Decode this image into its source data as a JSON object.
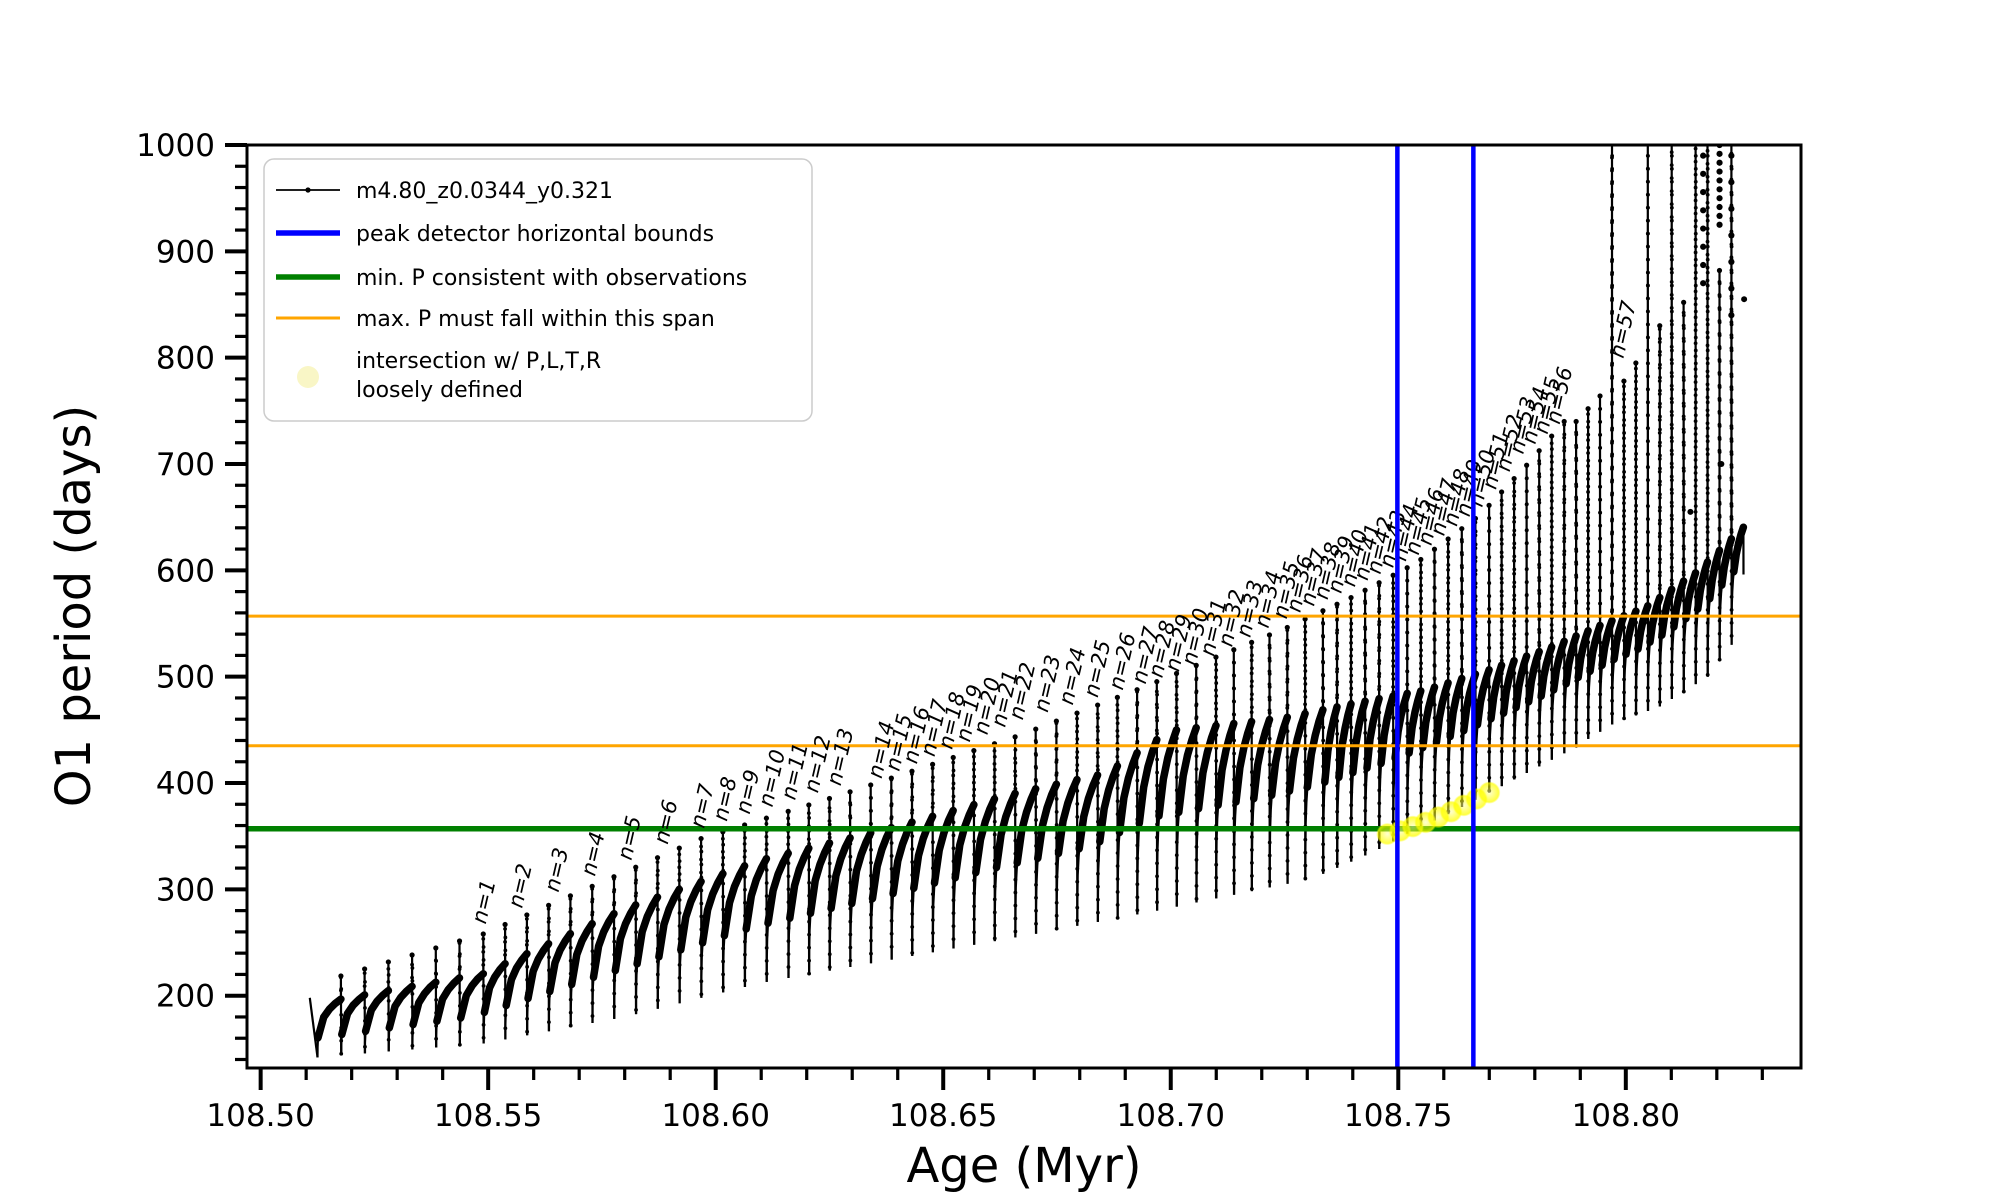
{
  "figure": {
    "background": "#ffffff"
  },
  "chart_data": {
    "type": "line",
    "title": "",
    "xlabel": "Age (Myr)",
    "ylabel": "O1 period (days)",
    "xlim": [
      108.497,
      108.8385
    ],
    "ylim": [
      132,
      1000
    ],
    "xticks": [
      108.5,
      108.55,
      108.6,
      108.65,
      108.7,
      108.75,
      108.8
    ],
    "x_minor_step": 0.01,
    "yticks": [
      200,
      300,
      400,
      500,
      600,
      700,
      800,
      900,
      1000
    ],
    "y_minor_step": 20,
    "grid": "off",
    "legend_position": "upper-left",
    "series": [
      {
        "label": "m4.80_z0.0344_y0.321",
        "color": "#000000",
        "style": "sawtooth line with dot markers"
      }
    ],
    "series_shape": {
      "comment_visible_structure": "sawtooth pulsation-period track: each tooth rises along an arc, overshoots with a thin dotted spike, then drops to the next minimum; spikes near the right edge exceed the top axis",
      "lead_in": {
        "x": 108.5108,
        "y": 198
      },
      "tooth_count": 81,
      "tooth_index_anchors": [
        [
          0,
          108.5125
        ],
        [
          7,
          108.549
        ],
        [
          21,
          108.616
        ],
        [
          36,
          108.684
        ],
        [
          42,
          108.71
        ],
        [
          48,
          108.7335
        ],
        [
          54,
          108.752
        ],
        [
          60,
          108.77
        ],
        [
          66,
          108.7865
        ],
        [
          70,
          108.797
        ],
        [
          74,
          108.8075
        ],
        [
          78,
          108.818
        ],
        [
          82,
          108.8285
        ]
      ],
      "min_envelope": [
        [
          108.5125,
          142
        ],
        [
          108.549,
          155
        ],
        [
          108.58,
          180
        ],
        [
          108.61,
          212
        ],
        [
          108.64,
          235
        ],
        [
          108.67,
          258
        ],
        [
          108.697,
          280
        ],
        [
          108.731,
          310
        ],
        [
          108.745,
          336
        ],
        [
          108.7532,
          355
        ],
        [
          108.7616,
          372
        ],
        [
          108.77,
          391
        ],
        [
          108.7785,
          410
        ],
        [
          108.7865,
          428
        ],
        [
          108.797,
          455
        ],
        [
          108.8075,
          472
        ],
        [
          108.818,
          500
        ],
        [
          108.8285,
          560
        ]
      ],
      "arc_top_envelope": [
        [
          108.5125,
          193
        ],
        [
          108.549,
          221
        ],
        [
          108.58,
          282
        ],
        [
          108.61,
          328
        ],
        [
          108.64,
          360
        ],
        [
          108.665,
          390
        ],
        [
          108.686,
          410
        ],
        [
          108.7,
          450
        ],
        [
          108.725,
          462
        ],
        [
          108.742,
          477
        ],
        [
          108.756,
          488
        ],
        [
          108.77,
          507
        ],
        [
          108.7835,
          528
        ],
        [
          108.794,
          548
        ],
        [
          108.8045,
          566
        ],
        [
          108.816,
          600
        ],
        [
          108.8285,
          652
        ]
      ],
      "spike_tip_envelope": [
        [
          108.5125,
          212
        ],
        [
          108.549,
          258
        ],
        [
          108.597,
          348
        ],
        [
          108.627,
          388
        ],
        [
          108.667,
          445
        ],
        [
          108.694,
          490
        ],
        [
          108.725,
          545
        ],
        [
          108.74,
          575
        ],
        [
          108.754,
          607
        ],
        [
          108.768,
          652
        ],
        [
          108.7785,
          700
        ],
        [
          108.7865,
          740
        ]
      ],
      "spike_overrides": {
        "66": 740,
        "67": 752,
        "68": 764,
        "69": 1040,
        "70": 778,
        "71": 795,
        "72": 1040,
        "73": 830,
        "74": 1040,
        "75": 852,
        "76": 1040,
        "77": 1040,
        "78": 882,
        "79": 1040,
        "80": 818
      },
      "near_top_dot_columns": [
        {
          "x": 108.817,
          "from": 870,
          "to": 990,
          "n": 8
        },
        {
          "x": 108.8206,
          "from": 925,
          "to": 1000,
          "n": 10
        },
        {
          "x": 108.8232,
          "from": 840,
          "to": 990,
          "n": 7
        }
      ],
      "extra_dots": [
        [
          108.826,
          855
        ],
        [
          108.821,
          700
        ],
        [
          108.8142,
          655
        ]
      ]
    },
    "peak_labels": {
      "count": 57,
      "prefix": "n=",
      "x_anchors": [
        [
          1,
          108.549
        ],
        [
          7,
          108.597
        ],
        [
          13,
          108.627
        ],
        [
          14,
          108.636
        ],
        [
          22,
          108.667
        ],
        [
          26,
          108.689
        ],
        [
          27,
          108.694
        ],
        [
          30,
          108.705
        ],
        [
          35,
          108.725
        ],
        [
          40,
          108.74
        ],
        [
          45,
          108.754
        ],
        [
          50,
          108.768
        ],
        [
          53,
          108.777
        ],
        [
          56,
          108.785
        ],
        [
          57,
          108.799
        ]
      ],
      "y_anchors": [
        [
          1,
          262
        ],
        [
          7,
          352
        ],
        [
          13,
          392
        ],
        [
          20,
          440
        ],
        [
          26,
          482
        ],
        [
          30,
          505
        ],
        [
          35,
          549
        ],
        [
          40,
          579
        ],
        [
          45,
          609
        ],
        [
          50,
          654
        ],
        [
          53,
          704
        ],
        [
          56,
          732
        ],
        [
          57,
          794
        ]
      ]
    },
    "vlines": {
      "color": "#0000ff",
      "x": [
        108.7498,
        108.7665
      ],
      "label": "peak detector horizontal bounds"
    },
    "hlines": {
      "green": {
        "color": "#008000",
        "y": 357,
        "label": "min. P consistent with observations"
      },
      "orange": {
        "color": "#ffa500",
        "y": [
          435,
          557
        ],
        "label": "max. P must fall within this span"
      }
    },
    "intersection_points": {
      "color": "#ffff00",
      "points": [
        [
          108.7476,
          352
        ],
        [
          108.7504,
          355
        ],
        [
          108.7532,
          359
        ],
        [
          108.756,
          363
        ],
        [
          108.7588,
          368
        ],
        [
          108.7616,
          373
        ],
        [
          108.7644,
          379
        ],
        [
          108.7672,
          385
        ],
        [
          108.77,
          391
        ]
      ]
    }
  },
  "legend": {
    "entries": [
      {
        "swatch": "line-dot",
        "color": "#000000",
        "label_lines": [
          "m4.80_z0.0344_y0.321"
        ]
      },
      {
        "swatch": "line",
        "color": "#0000ff",
        "label_lines": [
          "peak detector horizontal bounds"
        ]
      },
      {
        "swatch": "line",
        "color": "#008000",
        "label_lines": [
          "min. P consistent with observations"
        ]
      },
      {
        "swatch": "line-thin",
        "color": "#ffa500",
        "label_lines": [
          "max. P must fall within this span"
        ]
      },
      {
        "swatch": "dot",
        "color": "#f9f6c6",
        "label_lines": [
          "intersection w/ P,L,T,R",
          "loosely defined"
        ]
      }
    ]
  }
}
